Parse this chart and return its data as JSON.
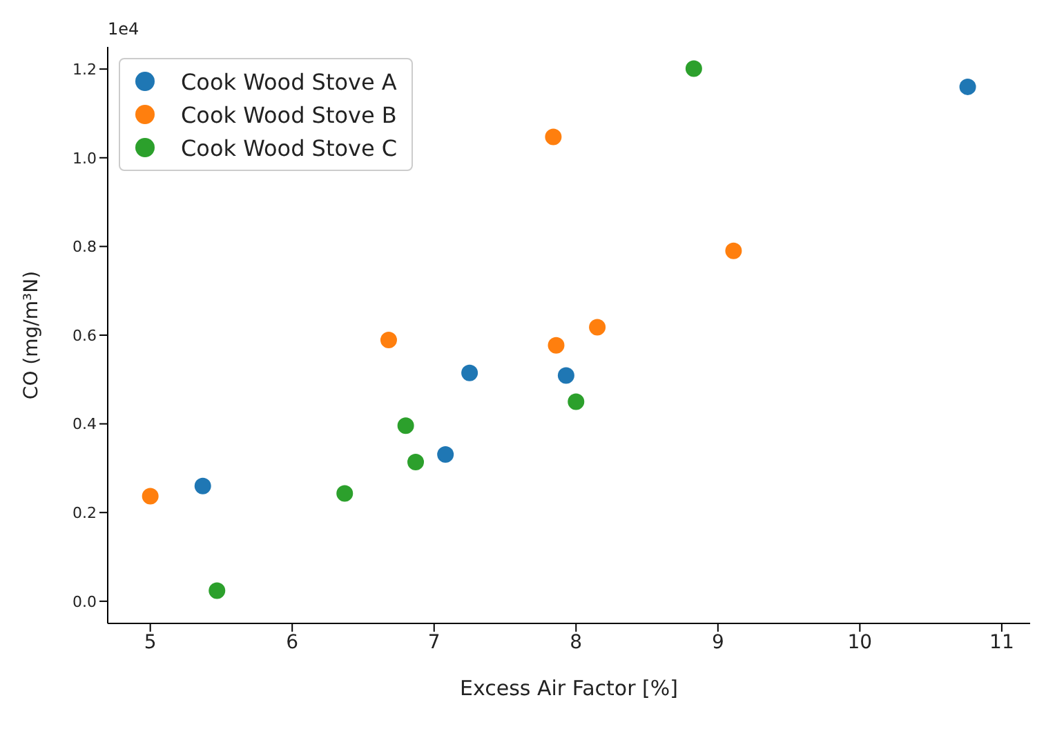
{
  "chart_data": {
    "type": "scatter",
    "xlabel": "Excess Air Factor [%]",
    "ylabel": "CO  (mg/m³N)",
    "annotations": [
      "1e4"
    ],
    "series": [
      {
        "name": "Cook Wood Stove A",
        "color": "#1f77b4",
        "x": [
          5.37,
          7.25,
          7.08,
          7.93,
          10.76
        ],
        "values": [
          0.26,
          0.515,
          0.331,
          0.509,
          1.16
        ]
      },
      {
        "name": "Cook Wood Stove B",
        "color": "#ff7f0e",
        "x": [
          5.0,
          6.68,
          7.84,
          7.86,
          8.15,
          9.11
        ],
        "values": [
          0.237,
          0.589,
          1.047,
          0.577,
          0.618,
          0.79
        ]
      },
      {
        "name": "Cook Wood Stove C",
        "color": "#2ca02c",
        "x": [
          5.47,
          6.37,
          6.8,
          6.87,
          8.0,
          8.83
        ],
        "values": [
          0.024,
          0.243,
          0.396,
          0.314,
          0.45,
          1.201
        ]
      }
    ],
    "xlim": [
      4.7,
      11.2
    ],
    "xticks": [
      5,
      6,
      7,
      8,
      9,
      10,
      11
    ],
    "ylim": [
      -0.05,
      1.25
    ],
    "yticks": [
      {
        "value": 0,
        "label": "0.0"
      },
      {
        "value": 0.2,
        "label": "0.2"
      },
      {
        "value": 0.4,
        "label": "0.4"
      },
      {
        "value": 0.6,
        "label": "0.6"
      },
      {
        "value": 0.8,
        "label": "0.8"
      },
      {
        "value": 1.0,
        "label": "1.0"
      },
      {
        "value": 1.2,
        "label": "1.2"
      }
    ],
    "marker": "circle",
    "grid": false,
    "legend": "top left"
  }
}
